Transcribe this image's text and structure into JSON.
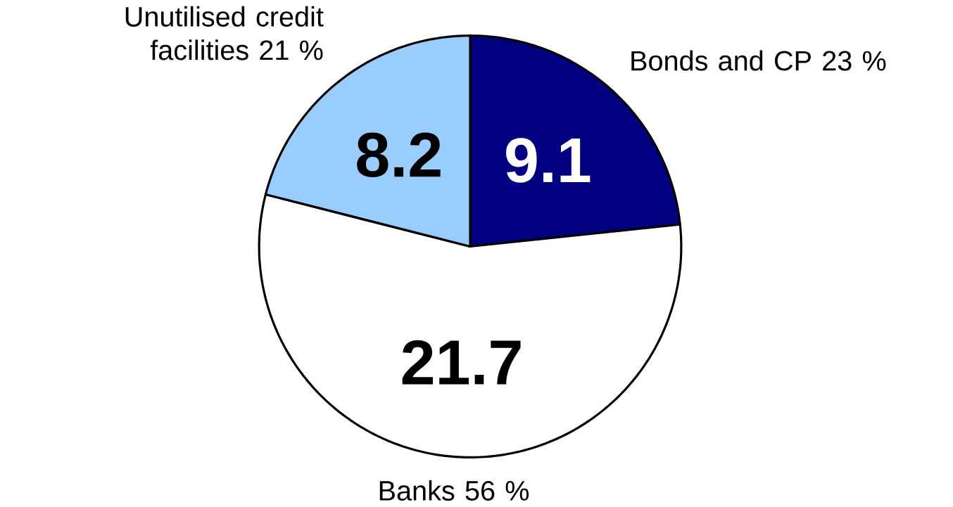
{
  "chart_data": {
    "type": "pie",
    "categories": [
      "Bonds and CP 23 %",
      "Banks 56 %",
      "Unutilised credit facilities 21 %"
    ],
    "values": [
      9.1,
      21.7,
      8.2
    ],
    "colors": [
      "#000080",
      "#ffffff",
      "#99ccff"
    ],
    "data_labels": true
  }
}
